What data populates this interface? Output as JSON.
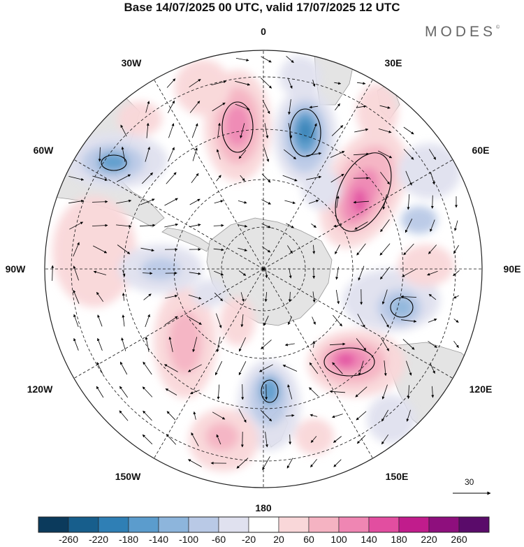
{
  "title": "Base 14/07/2025 00 UTC, valid 17/07/2025 12 UTC",
  "brand": {
    "text": "MODES",
    "mark": "©"
  },
  "map": {
    "projection": "south-polar-stereographic",
    "longitude_labels": [
      "0",
      "30E",
      "60E",
      "90E",
      "120E",
      "150E",
      "180",
      "150W",
      "120W",
      "90W",
      "60W",
      "30W"
    ],
    "graticule": "dashed",
    "vector_reference": {
      "label": "30"
    }
  },
  "anomalies": [
    {
      "id": "pos-south-atlantic",
      "sign": "positive",
      "peak": 170
    },
    {
      "id": "neg-south-atlantic-east",
      "sign": "negative",
      "peak": -220
    },
    {
      "id": "neg-south-america",
      "sign": "negative",
      "peak": -200
    },
    {
      "id": "pos-indian",
      "sign": "positive",
      "peak": 200
    },
    {
      "id": "neg-east-indian",
      "sign": "negative",
      "peak": -160
    },
    {
      "id": "pos-australia-south",
      "sign": "positive",
      "peak": 200
    },
    {
      "id": "neg-ross",
      "sign": "negative",
      "peak": -180
    },
    {
      "id": "pos-pacific",
      "sign": "positive",
      "peak": 100
    },
    {
      "id": "pos-amundsen",
      "sign": "positive",
      "peak": 100
    },
    {
      "id": "pos-southeast-pacific",
      "sign": "positive",
      "peak": 100
    }
  ],
  "colorbar": {
    "ticks": [
      "-260",
      "-220",
      "-180",
      "-140",
      "-100",
      "-60",
      "-20",
      "20",
      "60",
      "100",
      "140",
      "180",
      "220",
      "260"
    ],
    "colors": [
      "#0b3a5c",
      "#175e8c",
      "#2f7fb5",
      "#5b9ccd",
      "#8db5dc",
      "#b9c9e6",
      "#e0e1ef",
      "#ffffff",
      "#f9d7d9",
      "#f5b3c2",
      "#ef86b3",
      "#e24ea0",
      "#c11c8c",
      "#8e0f7d",
      "#5a0b6a"
    ]
  }
}
